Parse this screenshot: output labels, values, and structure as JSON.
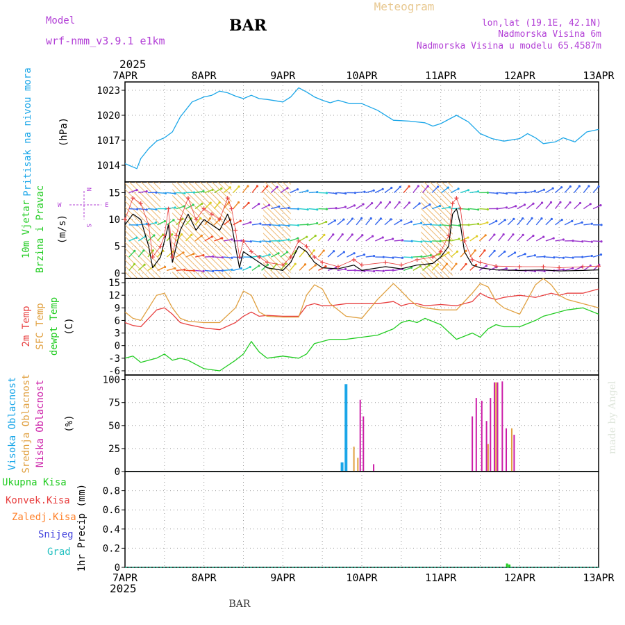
{
  "header": {
    "model_label": "Model",
    "model_name": "wrf-nmm_v3.9.1 e1km",
    "station": "BAR",
    "title": "Meteogram",
    "lonlat": "lon,lat (19.1E, 42.1N)",
    "elevation": "Nadmorska Visina 6m",
    "model_elevation": "Nadmorska Visina u modelu 65.4587m",
    "footer_station": "BAR",
    "credit": "made by Angel"
  },
  "colors": {
    "magenta": "#b23fd6",
    "gold": "#e8c890",
    "pressure": "#1aa6e8",
    "temp": "#e84040",
    "sfc_temp": "#e0a040",
    "dewpt": "#22cc22",
    "high_cloud": "#1aa6e8",
    "mid_cloud": "#e0a040",
    "low_cloud": "#cc1ea8",
    "precip_total": "#22cc22",
    "precip_conv": "#e84040",
    "precip_frozen": "#ff7f27",
    "snow": "#4444dd",
    "graupel": "#22c0c0"
  },
  "time_axis": {
    "year": "2025",
    "labels": [
      "7APR",
      "8APR",
      "9APR",
      "10APR",
      "11APR",
      "12APR",
      "13APR"
    ]
  },
  "chart_data": [
    {
      "type": "line",
      "panel": "pressure",
      "ylabel_main": "Pritisak na nivou mora",
      "ylabel_unit": "(hPa)",
      "ylim": [
        1012,
        1024
      ],
      "y_ticks": [
        1014,
        1017,
        1020,
        1023
      ],
      "x_unit": "days since 7APR 00UTC",
      "x": [
        0,
        0.15,
        0.2,
        0.3,
        0.4,
        0.5,
        0.6,
        0.7,
        0.85,
        1.0,
        1.1,
        1.2,
        1.3,
        1.4,
        1.5,
        1.6,
        1.7,
        1.8,
        2.0,
        2.1,
        2.2,
        2.3,
        2.4,
        2.5,
        2.6,
        2.7,
        2.85,
        3.0,
        3.2,
        3.4,
        3.6,
        3.8,
        3.9,
        4.0,
        4.1,
        4.2,
        4.35,
        4.5,
        4.65,
        4.8,
        5.0,
        5.1,
        5.2,
        5.3,
        5.45,
        5.55,
        5.7,
        5.85,
        6.0
      ],
      "y": [
        1014.2,
        1013.6,
        1014.8,
        1016.0,
        1016.9,
        1017.3,
        1018.0,
        1019.8,
        1021.6,
        1022.2,
        1022.4,
        1022.9,
        1022.7,
        1022.3,
        1022.0,
        1022.4,
        1022.0,
        1021.9,
        1021.6,
        1022.2,
        1023.3,
        1022.8,
        1022.2,
        1021.8,
        1021.5,
        1021.8,
        1021.4,
        1021.4,
        1020.6,
        1019.4,
        1019.3,
        1019.1,
        1018.7,
        1019.0,
        1019.5,
        1020.0,
        1019.2,
        1017.8,
        1017.2,
        1016.9,
        1017.2,
        1017.8,
        1017.3,
        1016.6,
        1016.8,
        1017.3,
        1016.8,
        1018.0,
        1018.3
      ],
      "series": [
        {
          "name": "Pritisak na nivou mora"
        }
      ]
    },
    {
      "type": "line",
      "panel": "wind",
      "ylabel_main": "10m Vjetar",
      "ylabel_sub": "Brzina i Pravac",
      "ylabel_unit": "(m/s)",
      "ylim": [
        -1,
        17
      ],
      "y_ticks": [
        0,
        5,
        10,
        15
      ],
      "compass": {
        "w": "W",
        "e": "E",
        "n": "N",
        "s": "S"
      },
      "x": [
        0,
        0.1,
        0.2,
        0.3,
        0.35,
        0.45,
        0.5,
        0.55,
        0.6,
        0.65,
        0.7,
        0.8,
        0.9,
        1.0,
        1.1,
        1.2,
        1.3,
        1.35,
        1.4,
        1.45,
        1.5,
        1.6,
        1.7,
        1.8,
        2.0,
        2.1,
        2.2,
        2.3,
        2.4,
        2.5,
        2.7,
        2.9,
        3.0,
        3.3,
        3.5,
        3.7,
        3.9,
        4.0,
        4.1,
        4.15,
        4.2,
        4.25,
        4.3,
        4.4,
        4.5,
        4.7,
        5.0,
        5.3,
        5.5,
        5.8,
        6.0
      ],
      "speed": [
        9,
        11,
        10,
        5,
        1,
        3,
        6,
        9,
        2,
        5,
        8,
        11,
        8,
        10,
        9,
        8,
        11,
        9,
        5,
        1,
        4,
        3,
        2,
        1,
        0.5,
        2,
        5,
        4,
        2,
        1,
        0.8,
        1.5,
        0.5,
        1.2,
        0.8,
        1.5,
        1.8,
        3,
        5,
        11,
        12,
        9,
        4,
        1.5,
        1,
        0.6,
        0.5,
        0.6,
        0.4,
        0.5,
        0.6
      ],
      "gust": [
        10,
        14,
        13,
        9,
        3,
        5,
        7,
        12,
        3,
        7,
        10,
        14,
        10,
        12,
        11,
        10,
        14,
        12,
        8,
        3,
        6,
        4,
        3,
        2,
        1.5,
        3,
        6,
        5,
        3,
        2,
        1.2,
        2.5,
        1.5,
        2,
        1.5,
        2.5,
        3,
        4,
        7,
        13,
        14,
        12,
        6,
        2.5,
        2,
        1.3,
        1.2,
        1.2,
        1,
        1.2,
        1.3
      ],
      "series": [
        {
          "name": "10m Vjetar"
        }
      ]
    },
    {
      "type": "line",
      "panel": "temperature",
      "ylabel_lines": [
        "2m Temp",
        "SFC Temp",
        "dewpt Temp"
      ],
      "ylabel_unit": "(C)",
      "ylim": [
        -7,
        16
      ],
      "y_ticks": [
        -6,
        -3,
        0,
        3,
        6,
        9,
        12,
        15
      ],
      "x": [
        0,
        0.1,
        0.2,
        0.3,
        0.4,
        0.5,
        0.6,
        0.7,
        0.8,
        1.0,
        1.2,
        1.4,
        1.5,
        1.6,
        1.7,
        1.8,
        2.0,
        2.2,
        2.3,
        2.4,
        2.5,
        2.6,
        2.8,
        3.0,
        3.2,
        3.4,
        3.5,
        3.6,
        3.7,
        3.8,
        4.0,
        4.2,
        4.4,
        4.5,
        4.6,
        4.7,
        4.8,
        5.0,
        5.2,
        5.3,
        5.4,
        5.5,
        5.6,
        5.8,
        6.0
      ],
      "series": [
        {
          "name": "2m Temp",
          "values": [
            5.5,
            4.8,
            4.5,
            6.5,
            8.5,
            9.0,
            7.5,
            5.5,
            5.0,
            4.2,
            3.8,
            5.5,
            7.0,
            8.0,
            7.0,
            7.2,
            7.0,
            7.0,
            9.5,
            10.0,
            9.5,
            9.5,
            10.0,
            10.0,
            10.0,
            10.5,
            9.5,
            10.0,
            10.0,
            9.5,
            9.8,
            9.5,
            10.5,
            12.5,
            11.5,
            11.0,
            11.5,
            12.0,
            11.5,
            12.0,
            12.5,
            12.0,
            12.5,
            12.5,
            13.5
          ]
        },
        {
          "name": "SFC Temp",
          "values": [
            8.0,
            6.5,
            6.0,
            9.0,
            12.0,
            12.5,
            9.0,
            6.5,
            5.8,
            5.5,
            5.5,
            9.0,
            13.0,
            12.0,
            8.0,
            7.0,
            6.8,
            6.8,
            12.0,
            14.5,
            13.5,
            10.0,
            7.0,
            6.5,
            11.0,
            14.8,
            13.0,
            11.0,
            9.5,
            9.0,
            8.5,
            8.5,
            12.5,
            14.8,
            14.0,
            10.5,
            9.0,
            7.5,
            14.5,
            16.0,
            14.5,
            12.0,
            11.0,
            10.0,
            9.0
          ]
        },
        {
          "name": "dewpt Temp",
          "values": [
            -3.0,
            -2.5,
            -4.0,
            -3.5,
            -3.0,
            -2.0,
            -3.5,
            -3.0,
            -3.5,
            -5.5,
            -6.0,
            -3.5,
            -2.0,
            1.0,
            -1.5,
            -3.0,
            -2.5,
            -3.0,
            -2.0,
            0.5,
            1.0,
            1.5,
            1.5,
            2.0,
            2.5,
            4.0,
            5.5,
            6.0,
            5.5,
            6.5,
            5.0,
            1.5,
            3.0,
            2.0,
            4.0,
            5.0,
            4.5,
            4.5,
            6.0,
            7.0,
            7.5,
            8.0,
            8.5,
            9.0,
            7.5
          ]
        }
      ]
    },
    {
      "type": "bar",
      "panel": "cloud",
      "ylabel_lines": [
        "Visoka Oblacnost",
        "Srednja Oblacnost",
        "Niska Oblacnost"
      ],
      "ylabel_unit": "(%)",
      "ylim": [
        0,
        105
      ],
      "y_ticks": [
        0,
        25,
        50,
        75,
        100
      ],
      "series": [
        {
          "name": "Visoka Oblacnost",
          "x": [
            2.75,
            2.8
          ],
          "values": [
            10,
            95
          ]
        },
        {
          "name": "Srednja Oblacnost",
          "x": [
            2.9,
            2.95,
            3.05,
            4.45,
            4.6,
            4.7,
            4.8,
            4.9
          ],
          "values": [
            27,
            15,
            0,
            0,
            30,
            97,
            0,
            47
          ]
        },
        {
          "name": "Niska Oblacnost",
          "x": [
            2.98,
            3.02,
            3.15,
            4.4,
            4.45,
            4.52,
            4.58,
            4.63,
            4.68,
            4.72,
            4.78,
            4.83,
            4.87,
            4.93
          ],
          "values": [
            78,
            60,
            8,
            60,
            80,
            77,
            55,
            80,
            97,
            97,
            98,
            47,
            0,
            40
          ]
        }
      ]
    },
    {
      "type": "bar",
      "panel": "precip",
      "ylabel_main": "1hr Precip",
      "ylabel_unit": "(mm)",
      "legend_lines": [
        "Ukupna Kisa",
        "Konvek.Kisa",
        "Zaledj.Kisa",
        "Snijeg",
        "Grad"
      ],
      "ylim": [
        0,
        1.0
      ],
      "y_ticks": [
        0,
        0.2,
        0.4,
        0.6,
        0.8
      ],
      "series": [
        {
          "name": "Ukupna Kisa",
          "x": [
            4.84,
            4.87
          ],
          "values": [
            0.04,
            0.03
          ]
        }
      ]
    }
  ]
}
